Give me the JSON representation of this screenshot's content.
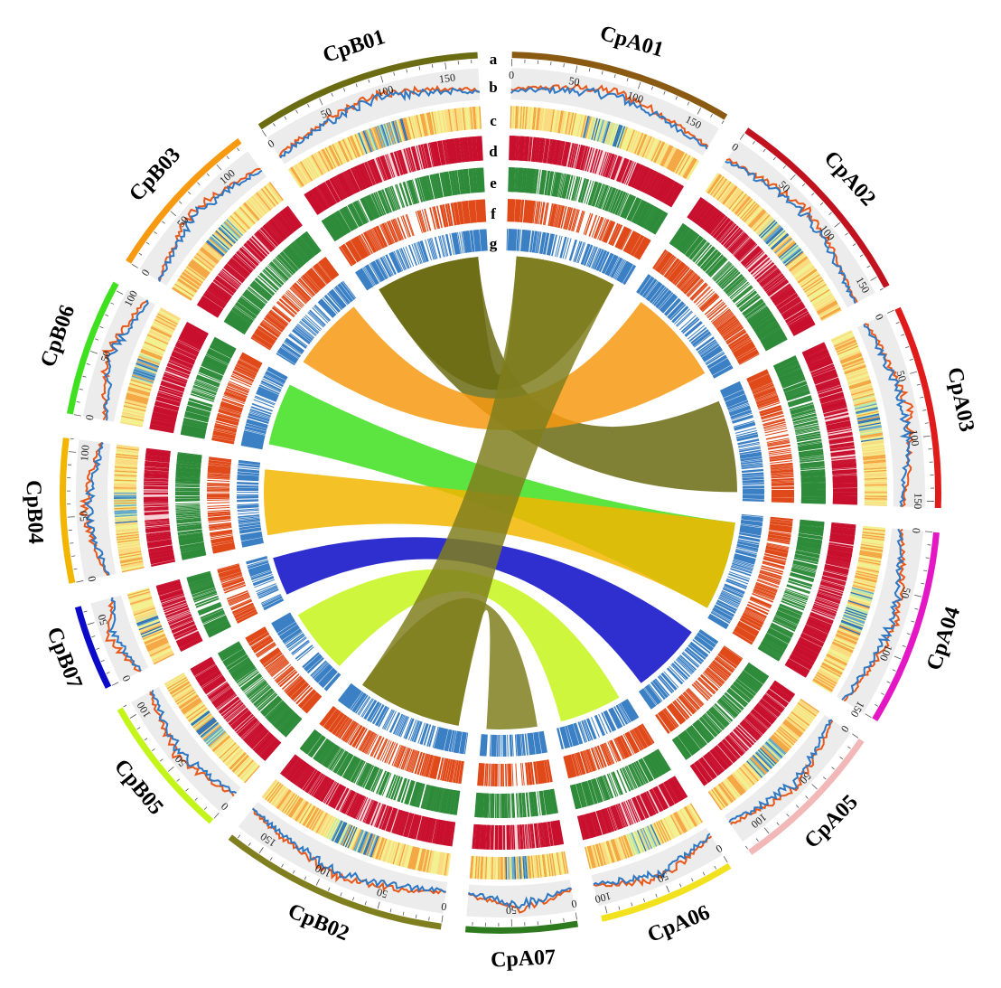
{
  "track_labels": [
    "a",
    "b",
    "c",
    "d",
    "e",
    "f",
    "g"
  ],
  "chromosomes": [
    {
      "name": "CpA01",
      "length": 170,
      "color": "#8b5a12",
      "ticks": [
        0,
        50,
        100,
        150
      ]
    },
    {
      "name": "CpA02",
      "length": 160,
      "color": "#c1121f",
      "ticks": [
        0,
        50,
        100,
        150
      ]
    },
    {
      "name": "CpA03",
      "length": 155,
      "color": "#e01b1b",
      "ticks": [
        0,
        50,
        100,
        150
      ]
    },
    {
      "name": "CpA04",
      "length": 150,
      "color": "#e317c4",
      "ticks": [
        0,
        50,
        100,
        150
      ]
    },
    {
      "name": "CpA05",
      "length": 120,
      "color": "#f2b8b8",
      "ticks": [
        0,
        50,
        100
      ]
    },
    {
      "name": "CpA06",
      "length": 105,
      "color": "#f2e21e",
      "ticks": [
        0,
        50,
        100
      ]
    },
    {
      "name": "CpA07",
      "length": 85,
      "color": "#2e7a1e",
      "ticks": [
        0,
        50
      ]
    },
    {
      "name": "CpB02",
      "length": 175,
      "color": "#7f7f1f",
      "ticks": [
        0,
        50,
        100,
        150
      ]
    },
    {
      "name": "CpB05",
      "length": 110,
      "color": "#c4f51a",
      "ticks": [
        0,
        50,
        100
      ]
    },
    {
      "name": "CpB07",
      "length": 65,
      "color": "#0a0ac8",
      "ticks": [
        0,
        50
      ]
    },
    {
      "name": "CpB04",
      "length": 110,
      "color": "#f2b600",
      "ticks": [
        0,
        50,
        100
      ]
    },
    {
      "name": "CpB06",
      "length": 105,
      "color": "#3fe01f",
      "ticks": [
        0,
        50,
        100
      ]
    },
    {
      "name": "CpB03",
      "length": 125,
      "color": "#f79a12",
      "ticks": [
        0,
        50,
        100
      ]
    },
    {
      "name": "CpB01",
      "length": 175,
      "color": "#6b6b12",
      "ticks": [
        0,
        50,
        100,
        150
      ]
    }
  ],
  "links": [
    {
      "from": "CpB01",
      "to": "CpA01",
      "color": "#6b6b12"
    },
    {
      "from": "CpB01",
      "to": "CpA03",
      "color": "#6b6b12"
    },
    {
      "from": "CpB03",
      "to": "CpA02",
      "color": "#f79a12"
    },
    {
      "from": "CpB06",
      "to": "CpA04",
      "color": "#3fe01f"
    },
    {
      "from": "CpB04",
      "to": "CpA04",
      "color": "#f2b600"
    },
    {
      "from": "CpB07",
      "to": "CpA05",
      "color": "#0a0ac8"
    },
    {
      "from": "CpB05",
      "to": "CpA06",
      "color": "#c4f51a"
    },
    {
      "from": "CpB02",
      "to": "CpA07",
      "color": "#7f7f1f"
    },
    {
      "from": "CpB02",
      "to": "CpA01",
      "color": "#7f7f1f"
    }
  ],
  "track_colors": {
    "heat": [
      "#f4a33b",
      "#fbd97a",
      "#f1f08a",
      "#bfe6a0",
      "#5fa6c9",
      "#2b6fb3"
    ],
    "density_d": "#c8102e",
    "density_e": "#2e8b3a",
    "density_f": "#e04a1a",
    "density_g": "#3a7fc4",
    "line_orange": "#e8581a",
    "line_blue": "#2f78c4",
    "track_bg": "#ececec"
  }
}
